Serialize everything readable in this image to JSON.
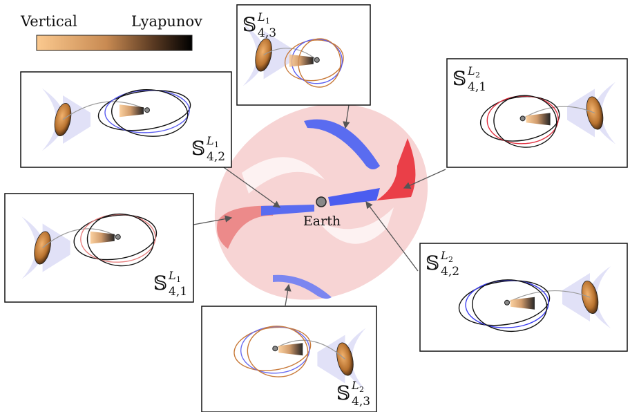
{
  "colorbar": {
    "left_label": "Vertical",
    "right_label": "Lyapunov"
  },
  "center_label": "Earth",
  "panels": [
    {
      "symbol": "𝕊",
      "superscript": "L",
      "superscript_index": "1",
      "subscript": "4,3"
    },
    {
      "symbol": "𝕊",
      "superscript": "L",
      "superscript_index": "2",
      "subscript": "4,1"
    },
    {
      "symbol": "𝕊",
      "superscript": "L",
      "superscript_index": "1",
      "subscript": "4,2"
    },
    {
      "symbol": "𝕊",
      "superscript": "L",
      "superscript_index": "1",
      "subscript": "4,1"
    },
    {
      "symbol": "𝕊",
      "superscript": "L",
      "superscript_index": "2",
      "subscript": "4,2"
    },
    {
      "symbol": "𝕊",
      "superscript": "L",
      "superscript_index": "2",
      "subscript": "4,3"
    }
  ]
}
